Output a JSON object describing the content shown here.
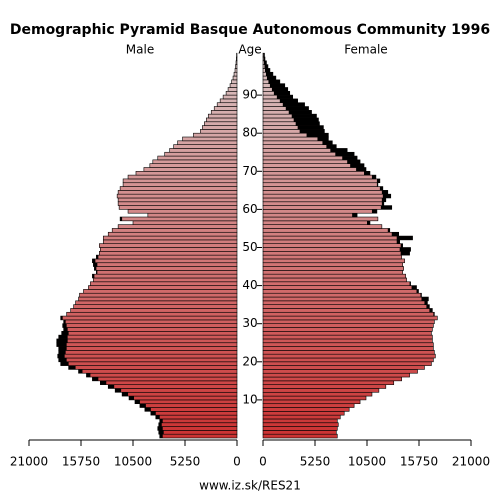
{
  "chart_data": {
    "type": "pyramid",
    "title": "Demographic Pyramid Basque Autonomous Community 1996",
    "left_label": "Male",
    "center_label": "Age",
    "right_label": "Female",
    "footer": "www.iz.sk/RES21",
    "colors": [
      "#cc3333",
      "#d8c4c4"
    ],
    "excess_color": "#000000",
    "xlim": [
      0,
      21000
    ],
    "xticks": [
      0,
      5250,
      10500,
      15750,
      21000
    ],
    "ylim": [
      0,
      100
    ],
    "yticks": [
      10,
      20,
      30,
      40,
      50,
      60,
      70,
      80,
      90
    ],
    "series": [
      {
        "name": "Male",
        "values": [
          7800,
          7900,
          8000,
          7900,
          7800,
          8200,
          8700,
          9300,
          9800,
          10300,
          10900,
          11600,
          12300,
          13000,
          13800,
          14600,
          15200,
          16000,
          17000,
          17800,
          18000,
          18100,
          18000,
          18000,
          18200,
          18200,
          18000,
          17700,
          17500,
          17600,
          17500,
          17800,
          17200,
          16800,
          16500,
          16300,
          16000,
          15900,
          15500,
          15000,
          14800,
          14500,
          14600,
          14200,
          14400,
          14500,
          14600,
          14200,
          13900,
          13800,
          13900,
          13500,
          13500,
          13000,
          12600,
          12000,
          10500,
          11800,
          9000,
          11000,
          11900,
          12000,
          12000,
          12100,
          12000,
          11800,
          11500,
          11500,
          11000,
          10200,
          9400,
          8800,
          8500,
          8000,
          7300,
          6800,
          6400,
          6000,
          5500,
          4400,
          3700,
          3500,
          3300,
          3100,
          2900,
          2600,
          2300,
          2000,
          1700,
          1400,
          1100,
          900,
          700,
          550,
          400,
          300,
          200,
          150,
          100,
          60,
          40
        ]
      },
      {
        "name": "Female",
        "values": [
          7500,
          7400,
          7500,
          7600,
          7500,
          7800,
          8200,
          8700,
          9200,
          9800,
          10400,
          11000,
          11700,
          12400,
          13200,
          14000,
          14800,
          15600,
          16300,
          17000,
          17200,
          17400,
          17300,
          17200,
          17200,
          17100,
          17100,
          17000,
          17100,
          17200,
          17300,
          17600,
          17300,
          17100,
          16800,
          16600,
          16700,
          16000,
          15700,
          15500,
          14900,
          14500,
          14400,
          14100,
          14200,
          14100,
          14300,
          14000,
          14800,
          14900,
          14100,
          13800,
          15100,
          13700,
          12800,
          12000,
          10800,
          11600,
          9500,
          11500,
          13000,
          12200,
          12400,
          12900,
          12600,
          12100,
          11600,
          11800,
          11400,
          10800,
          10400,
          10200,
          9800,
          9500,
          9200,
          8500,
          7400,
          7000,
          6600,
          6600,
          6200,
          6100,
          5700,
          5600,
          5400,
          4900,
          4600,
          4200,
          3500,
          3000,
          2700,
          2500,
          2200,
          1700,
          1300,
          1000,
          700,
          500,
          350,
          200,
          150
        ]
      }
    ]
  }
}
